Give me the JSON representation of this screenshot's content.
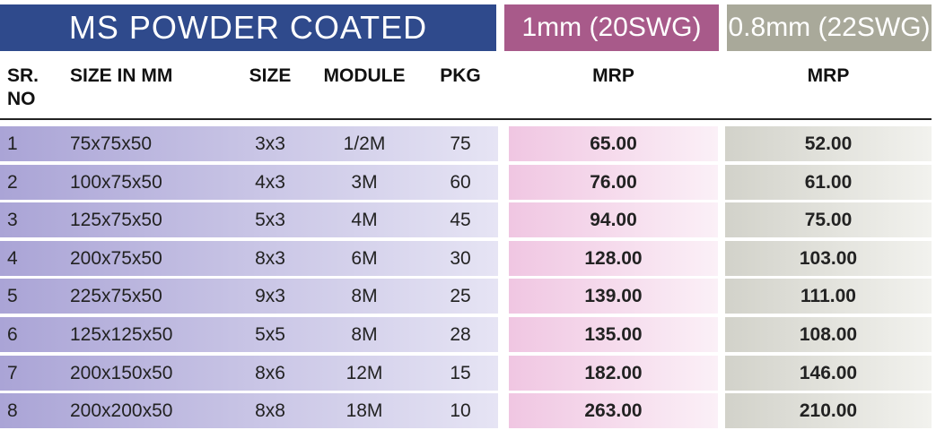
{
  "header": {
    "title": "MS POWDER COATED",
    "variant_1": "1mm (20SWG)",
    "variant_2": "0.8mm (22SWG)"
  },
  "table": {
    "columns": [
      "SR. NO",
      "SIZE IN MM",
      "SIZE",
      "MODULE",
      "PKG",
      "MRP",
      "MRP"
    ],
    "rows": [
      [
        "1",
        "75x75x50",
        "3x3",
        "1/2M",
        "75",
        "65.00",
        "52.00"
      ],
      [
        "2",
        "100x75x50",
        "4x3",
        "3M",
        "60",
        "76.00",
        "61.00"
      ],
      [
        "3",
        "125x75x50",
        "5x3",
        "4M",
        "45",
        "94.00",
        "75.00"
      ],
      [
        "4",
        "200x75x50",
        "8x3",
        "6M",
        "30",
        "128.00",
        "103.00"
      ],
      [
        "5",
        "225x75x50",
        "9x3",
        "8M",
        "25",
        "139.00",
        "111.00"
      ],
      [
        "6",
        "125x125x50",
        "5x5",
        "8M",
        "28",
        "135.00",
        "108.00"
      ],
      [
        "7",
        "200x150x50",
        "8x6",
        "12M",
        "15",
        "182.00",
        "146.00"
      ],
      [
        "8",
        "200x200x50",
        "8x8",
        "18M",
        "10",
        "263.00",
        "210.00"
      ]
    ]
  }
}
